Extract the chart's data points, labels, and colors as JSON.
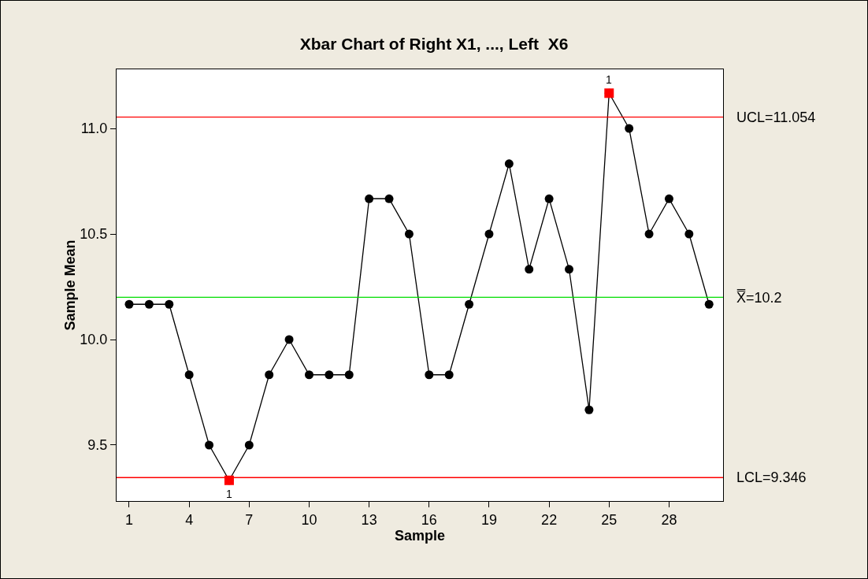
{
  "chart_data": {
    "type": "line",
    "title": "Xbar Chart of Right X1, ..., Left  X6",
    "xlabel": "Sample",
    "ylabel": "Sample Mean",
    "x": [
      1,
      2,
      3,
      4,
      5,
      6,
      7,
      8,
      9,
      10,
      11,
      12,
      13,
      14,
      15,
      16,
      17,
      18,
      19,
      20,
      21,
      22,
      23,
      24,
      25,
      26,
      27,
      28,
      29,
      30
    ],
    "series": [
      {
        "color": "#000000",
        "marker": "circle",
        "values": [
          10.167,
          10.167,
          10.167,
          9.833,
          9.5,
          9.333,
          9.5,
          9.833,
          10.0,
          9.833,
          9.833,
          9.833,
          10.667,
          10.667,
          10.5,
          9.833,
          9.833,
          10.167,
          10.5,
          10.833,
          10.333,
          10.667,
          10.333,
          9.667,
          11.167,
          11.0,
          10.5,
          10.667,
          10.5,
          10.167
        ]
      },
      {
        "type": "scatter",
        "color": "#ff0000",
        "marker": "square",
        "x": [
          6,
          25
        ],
        "values": [
          9.333,
          11.167
        ]
      }
    ],
    "xlim": [
      0.37,
      30.7
    ],
    "xticks": [
      1,
      4,
      7,
      10,
      13,
      16,
      19,
      22,
      25,
      28
    ],
    "ylim": [
      9.235,
      11.28
    ],
    "yticks": [
      {
        "value": 9.5,
        "label": "9.5"
      },
      {
        "value": 10,
        "label": "10.0"
      },
      {
        "value": 10.5,
        "label": "10.5"
      },
      {
        "value": 11,
        "label": "11.0"
      }
    ],
    "ref_lines": [
      {
        "axis": "y",
        "value": 11.054,
        "label": "UCL=11.054",
        "color": "#ff0000"
      },
      {
        "axis": "y",
        "value": 10.2,
        "label": "X̿=10.2",
        "color": "#00dd00"
      },
      {
        "axis": "y",
        "value": 9.346,
        "label": "LCL=9.346",
        "color": "#ff0000"
      }
    ],
    "annotations": [
      {
        "text": "1",
        "x": 6,
        "y": 9.333
      },
      {
        "text": "1",
        "x": 25,
        "y": 11.167
      }
    ],
    "grid": false
  }
}
